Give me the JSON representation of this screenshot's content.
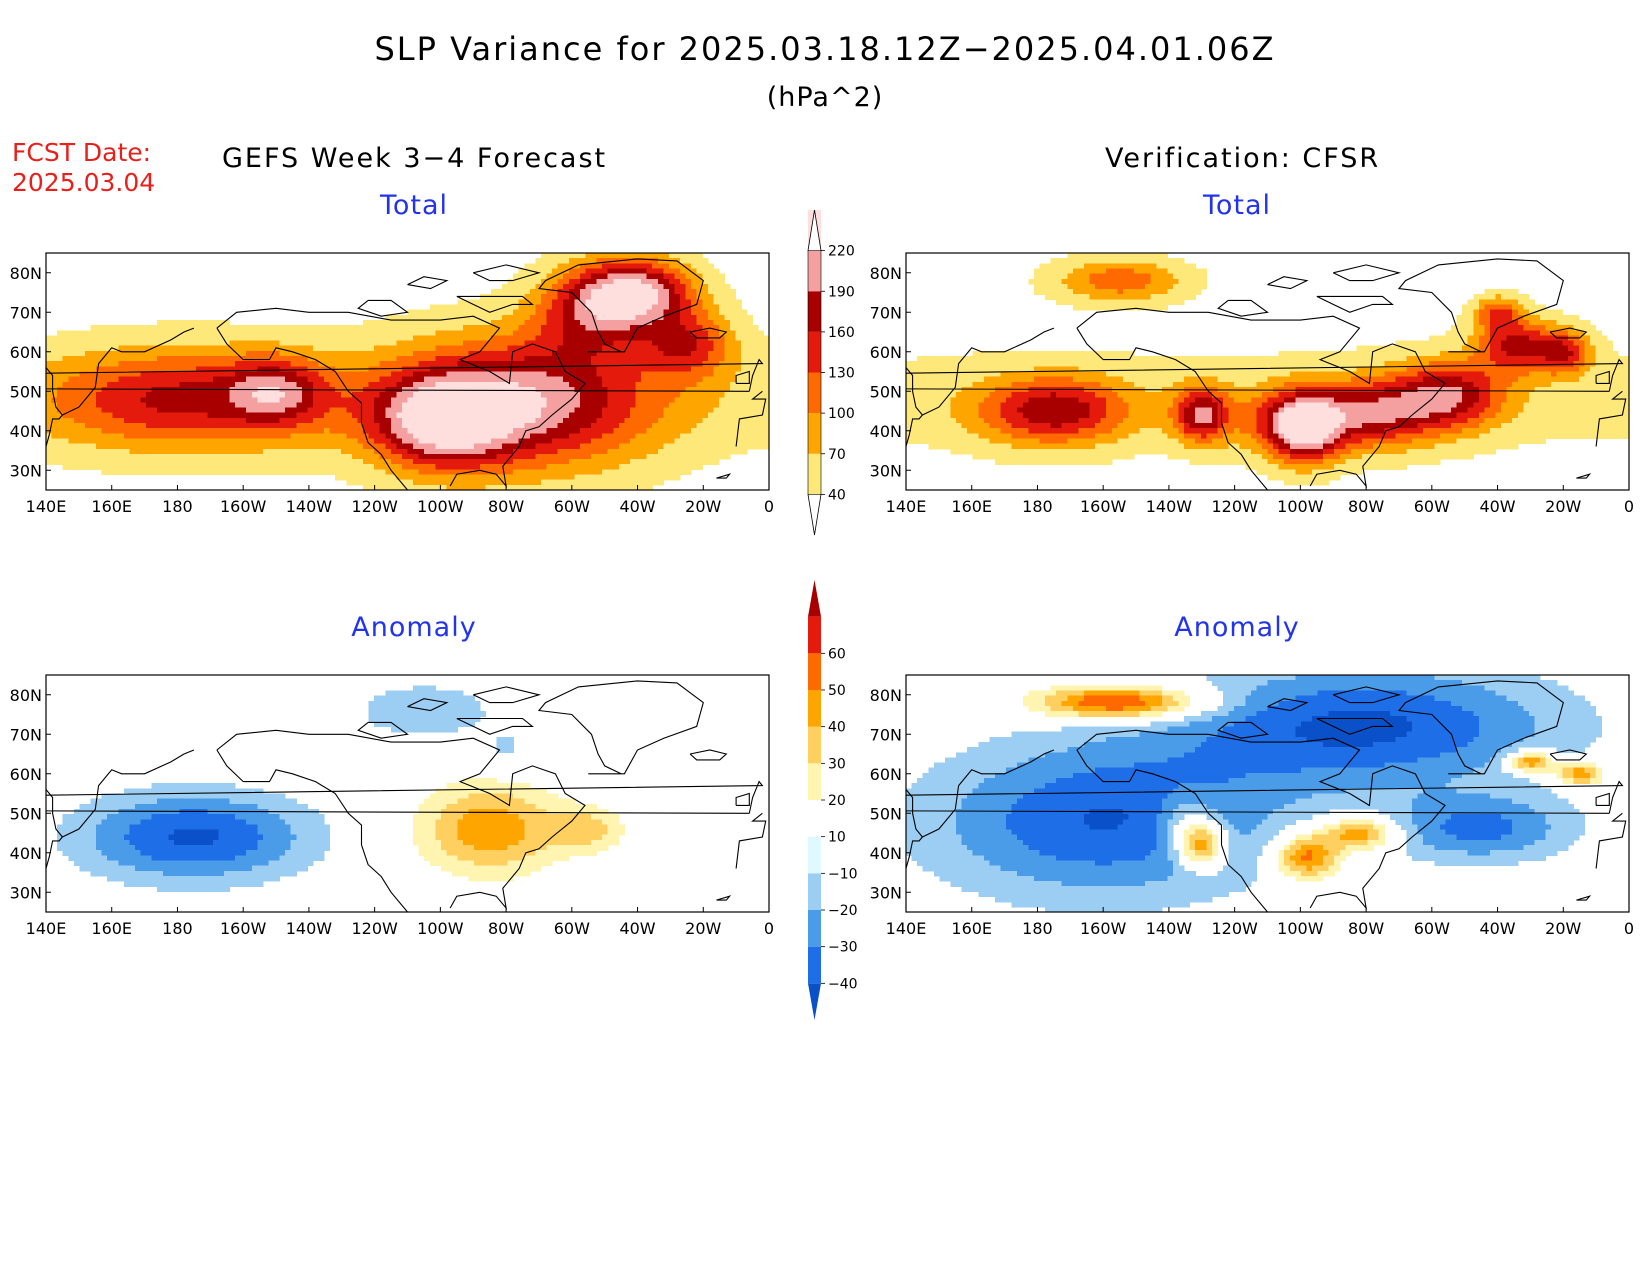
{
  "title": "SLP Variance for 2025.03.18.12Z−2025.04.01.06Z",
  "units": "(hPa^2)",
  "forecast_date_label": "FCST Date:",
  "forecast_date": "2025.03.04",
  "left_heading": "GEFS Week 3−4 Forecast",
  "right_heading": "Verification: CFSR",
  "panels": [
    {
      "id": "fcst-total",
      "title": "Total",
      "field": "total",
      "blobs": [
        [
          -178,
          48,
          30,
          9,
          120
        ],
        [
          -150,
          50,
          10,
          6,
          95
        ],
        [
          -75,
          47,
          28,
          12,
          165
        ],
        [
          -40,
          75,
          12,
          6,
          185
        ],
        [
          -25,
          62,
          10,
          6,
          110
        ],
        [
          -100,
          42,
          14,
          8,
          150
        ],
        [
          -55,
          70,
          12,
          8,
          110
        ]
      ]
    },
    {
      "id": "verif-total",
      "title": "Total",
      "field": "total",
      "blobs": [
        [
          -175,
          45,
          16,
          6,
          140
        ],
        [
          -130,
          44,
          6,
          5,
          150
        ],
        [
          -98,
          40,
          7,
          6,
          140
        ],
        [
          -80,
          44,
          14,
          6,
          140
        ],
        [
          -55,
          49,
          12,
          6,
          140
        ],
        [
          -35,
          62,
          8,
          5,
          130
        ],
        [
          -20,
          60,
          6,
          4,
          120
        ],
        [
          -155,
          78,
          14,
          4,
          95
        ],
        [
          -105,
          42,
          10,
          6,
          90
        ],
        [
          -40,
          70,
          5,
          3,
          90
        ]
      ]
    },
    {
      "id": "fcst-anomaly",
      "title": "Anomaly",
      "field": "anomaly",
      "blobs": [
        [
          -175,
          44,
          25,
          8,
          -42
        ],
        [
          -85,
          46,
          15,
          8,
          38
        ],
        [
          -105,
          76,
          15,
          5,
          -20
        ],
        [
          -55,
          46,
          8,
          4,
          22
        ],
        [
          -80,
          66,
          6,
          4,
          -12
        ]
      ]
    },
    {
      "id": "verif-anomaly",
      "title": "Anomaly",
      "field": "anomaly",
      "blobs": [
        [
          -155,
          78,
          18,
          3,
          60
        ],
        [
          -160,
          48,
          38,
          14,
          -40
        ],
        [
          -80,
          72,
          42,
          11,
          -42
        ],
        [
          -45,
          46,
          20,
          6,
          -32
        ],
        [
          -130,
          42,
          5,
          4,
          55
        ],
        [
          -98,
          39,
          7,
          4,
          50
        ],
        [
          -82,
          45,
          8,
          3,
          45
        ],
        [
          -30,
          63,
          5,
          2,
          50
        ],
        [
          -15,
          60,
          5,
          2,
          45
        ],
        [
          -135,
          48,
          6,
          5,
          20
        ]
      ]
    }
  ],
  "axes": {
    "x_ticks": [
      "140E",
      "160E",
      "180",
      "160W",
      "140W",
      "120W",
      "100W",
      "80W",
      "60W",
      "40W",
      "20W",
      "0"
    ],
    "y_ticks": [
      "80N",
      "70N",
      "60N",
      "50N",
      "40N",
      "30N"
    ],
    "lon_range": [
      140,
      360
    ],
    "lat_range": [
      25,
      85
    ]
  },
  "colorbars": {
    "total": {
      "levels": [
        40,
        70,
        100,
        130,
        160,
        190,
        220
      ],
      "labels": [
        "40",
        "70",
        "100",
        "130",
        "160",
        "190",
        "220"
      ],
      "colors": [
        "#ffe87a",
        "#ffa500",
        "#ff6a00",
        "#e31a0c",
        "#a80000",
        "#f5a0a0",
        "#ffdede"
      ]
    },
    "anomaly": {
      "levels": [
        -40,
        -30,
        -20,
        -10,
        10,
        20,
        30,
        40,
        50,
        60
      ],
      "labels": [
        "−40",
        "−30",
        "−20",
        "−10",
        "10",
        "20",
        "30",
        "40",
        "50",
        "60"
      ],
      "colors": [
        "#0a50c8",
        "#1e6ee8",
        "#4a9be8",
        "#9ccdf2",
        "#e0f8ff",
        "#ffffff",
        "#fff5b0",
        "#ffd060",
        "#ffa500",
        "#ff6a00",
        "#e31a0c",
        "#a80000"
      ]
    }
  }
}
